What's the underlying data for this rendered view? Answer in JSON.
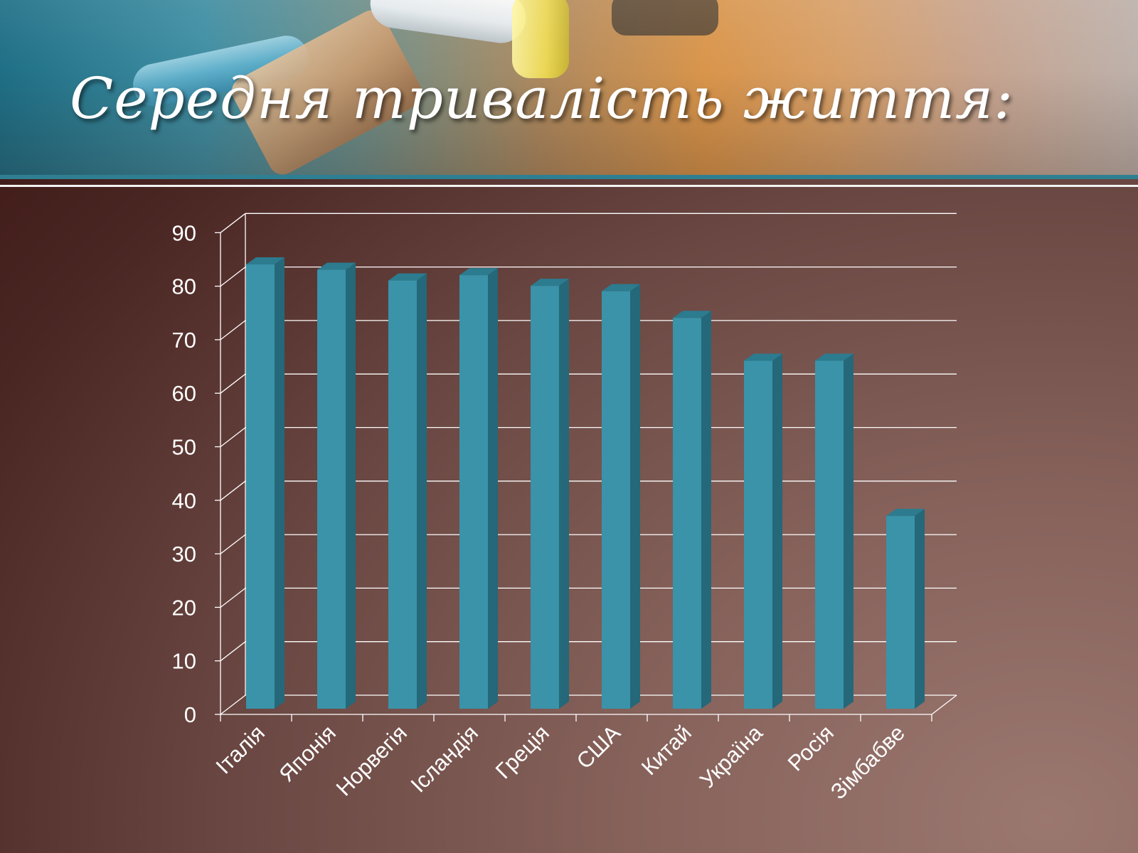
{
  "slide": {
    "title": "Середня тривалість життя:"
  },
  "colors": {
    "bar_front": "#3a93a9",
    "bar_side": "#246879",
    "bar_top": "#2c7b8f",
    "grid": "#ffffff",
    "axis_text": "#ffffff"
  },
  "chart_data": {
    "type": "bar",
    "style": "3d-column",
    "categories": [
      "Італія",
      "Японія",
      "Норвегія",
      "Ісландія",
      "Греція",
      "США",
      "Китай",
      "Україна",
      "Росія",
      "Зімбабве"
    ],
    "values": [
      83,
      82,
      80,
      81,
      79,
      78,
      73,
      65,
      65,
      36
    ],
    "y_ticks": [
      0,
      10,
      20,
      30,
      40,
      50,
      60,
      70,
      80,
      90
    ],
    "ylim": [
      0,
      90
    ],
    "grid": true,
    "legend": "none",
    "title": "",
    "xlabel": "",
    "ylabel": ""
  }
}
